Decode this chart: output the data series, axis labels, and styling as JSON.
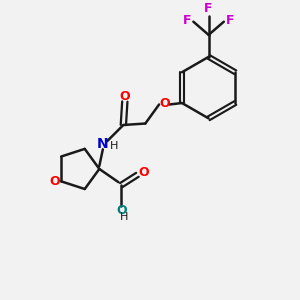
{
  "bg_color": "#f2f2f2",
  "bond_color": "#1a1a1a",
  "oxygen_color": "#ff0000",
  "nitrogen_color": "#0000cc",
  "fluorine_color": "#cc00cc",
  "teal_color": "#008080",
  "figsize": [
    3.0,
    3.0
  ],
  "dpi": 100,
  "xlim": [
    0,
    10
  ],
  "ylim": [
    0,
    10
  ]
}
